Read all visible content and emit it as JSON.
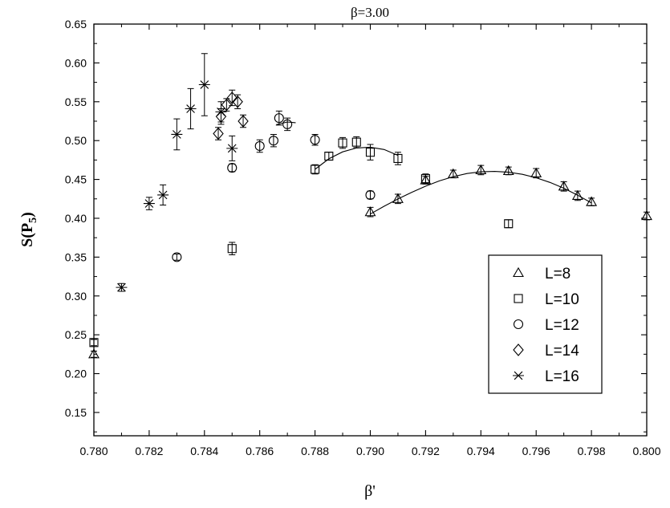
{
  "chart_data": {
    "type": "scatter",
    "title": "β=3.00",
    "xlabel": "β'",
    "ylabel": "S(P5)",
    "xlim": [
      0.78,
      0.8
    ],
    "ylim": [
      0.12,
      0.65
    ],
    "xticks": [
      "0.780",
      "0.782",
      "0.784",
      "0.786",
      "0.788",
      "0.790",
      "0.792",
      "0.794",
      "0.796",
      "0.798",
      "0.800"
    ],
    "yticks": [
      "0.15",
      "0.20",
      "0.25",
      "0.30",
      "0.35",
      "0.40",
      "0.45",
      "0.50",
      "0.55",
      "0.60",
      "0.65"
    ],
    "grid": false,
    "legend_position": "lower-right",
    "series": [
      {
        "name": "L=8",
        "marker": "triangle",
        "points": [
          [
            0.78,
            0.225,
            0.004
          ],
          [
            0.79,
            0.408,
            0.006
          ],
          [
            0.791,
            0.425,
            0.006
          ],
          [
            0.792,
            0.449,
            0.005
          ],
          [
            0.793,
            0.457,
            0.005
          ],
          [
            0.794,
            0.462,
            0.006
          ],
          [
            0.795,
            0.461,
            0.005
          ],
          [
            0.796,
            0.458,
            0.006
          ],
          [
            0.797,
            0.441,
            0.006
          ],
          [
            0.7975,
            0.429,
            0.006
          ],
          [
            0.798,
            0.421,
            0.005
          ],
          [
            0.8,
            0.403,
            0.005
          ]
        ],
        "fit": [
          [
            0.79,
            0.4055
          ],
          [
            0.7905,
            0.4155
          ],
          [
            0.791,
            0.4249
          ],
          [
            0.7915,
            0.4335
          ],
          [
            0.792,
            0.4413
          ],
          [
            0.7925,
            0.4481
          ],
          [
            0.793,
            0.4536
          ],
          [
            0.7935,
            0.4576
          ],
          [
            0.794,
            0.4598
          ],
          [
            0.7945,
            0.4603
          ],
          [
            0.795,
            0.4593
          ],
          [
            0.7955,
            0.4566
          ],
          [
            0.796,
            0.4522
          ],
          [
            0.7965,
            0.4462
          ],
          [
            0.797,
            0.4387
          ],
          [
            0.7975,
            0.4297
          ],
          [
            0.798,
            0.4197
          ]
        ]
      },
      {
        "name": "L=10",
        "marker": "square",
        "points": [
          [
            0.78,
            0.24,
            0.004
          ],
          [
            0.785,
            0.361,
            0.008
          ],
          [
            0.788,
            0.463,
            0.006
          ],
          [
            0.7885,
            0.48,
            0.005
          ],
          [
            0.789,
            0.497,
            0.007
          ],
          [
            0.7895,
            0.498,
            0.007
          ],
          [
            0.79,
            0.485,
            0.01
          ],
          [
            0.791,
            0.477,
            0.008
          ],
          [
            0.792,
            0.451,
            0.006
          ],
          [
            0.795,
            0.393,
            0.005
          ]
        ],
        "fit": [
          [
            0.788,
            0.463
          ],
          [
            0.7885,
            0.4765
          ],
          [
            0.789,
            0.4855
          ],
          [
            0.7895,
            0.4905
          ],
          [
            0.79,
            0.4915
          ],
          [
            0.7905,
            0.4885
          ],
          [
            0.791,
            0.481
          ]
        ]
      },
      {
        "name": "L=12",
        "marker": "circle",
        "points": [
          [
            0.783,
            0.35,
            0.004
          ],
          [
            0.785,
            0.465,
            0.005
          ],
          [
            0.786,
            0.493,
            0.008
          ],
          [
            0.7865,
            0.5,
            0.008
          ],
          [
            0.7867,
            0.529,
            0.009
          ],
          [
            0.787,
            0.521,
            0.008
          ],
          [
            0.788,
            0.501,
            0.007
          ],
          [
            0.79,
            0.43,
            0.005
          ]
        ],
        "fit": [
          [
            0.7866,
            0.5205
          ],
          [
            0.787,
            0.524
          ],
          [
            0.7873,
            0.523
          ]
        ]
      },
      {
        "name": "L=14",
        "marker": "diamond",
        "points": [
          [
            0.7845,
            0.509,
            0.008
          ],
          [
            0.7846,
            0.531,
            0.01
          ],
          [
            0.7848,
            0.546,
            0.008
          ],
          [
            0.785,
            0.555,
            0.01
          ],
          [
            0.7852,
            0.55,
            0.009
          ],
          [
            0.7854,
            0.525,
            0.008
          ]
        ]
      },
      {
        "name": "L=16",
        "marker": "star",
        "points": [
          [
            0.781,
            0.311,
            0.005
          ],
          [
            0.782,
            0.419,
            0.008
          ],
          [
            0.7825,
            0.43,
            0.013
          ],
          [
            0.783,
            0.508,
            0.02
          ],
          [
            0.7835,
            0.541,
            0.026
          ],
          [
            0.784,
            0.572,
            0.04
          ],
          [
            0.7846,
            0.537,
            0.013
          ],
          [
            0.785,
            0.49,
            0.016
          ]
        ]
      }
    ]
  }
}
